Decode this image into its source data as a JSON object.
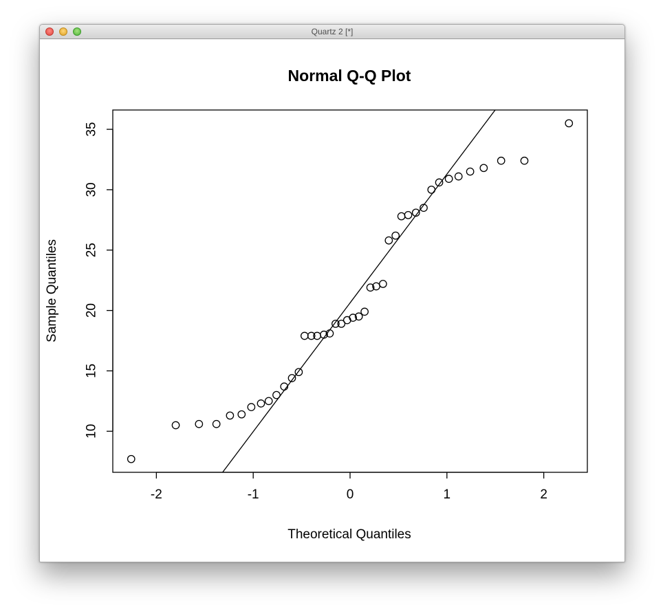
{
  "window": {
    "title": "Quartz 2 [*]"
  },
  "colors": {
    "ink": "#000000",
    "background": "#ffffff"
  },
  "chart_data": {
    "type": "scatter",
    "title": "Normal Q-Q Plot",
    "xlabel": "Theoretical Quantiles",
    "ylabel": "Sample Quantiles",
    "xlim": [
      -2.45,
      2.45
    ],
    "ylim": [
      6.6,
      36.6
    ],
    "x_ticks": [
      -2,
      -1,
      0,
      1,
      2
    ],
    "x_tick_labels": [
      "-2",
      "-1",
      "0",
      "1",
      "2"
    ],
    "y_ticks": [
      10,
      15,
      20,
      25,
      30,
      35
    ],
    "y_tick_labels": [
      "10",
      "15",
      "20",
      "25",
      "30",
      "35"
    ],
    "grid": false,
    "marker": "open-circle",
    "points": [
      {
        "x": -2.26,
        "y": 7.7
      },
      {
        "x": -1.8,
        "y": 10.5
      },
      {
        "x": -1.56,
        "y": 10.6
      },
      {
        "x": -1.38,
        "y": 10.6
      },
      {
        "x": -1.24,
        "y": 11.3
      },
      {
        "x": -1.12,
        "y": 11.4
      },
      {
        "x": -1.02,
        "y": 12.0
      },
      {
        "x": -0.92,
        "y": 12.3
      },
      {
        "x": -0.84,
        "y": 12.5
      },
      {
        "x": -0.76,
        "y": 13.0
      },
      {
        "x": -0.68,
        "y": 13.7
      },
      {
        "x": -0.6,
        "y": 14.4
      },
      {
        "x": -0.53,
        "y": 14.9
      },
      {
        "x": -0.47,
        "y": 17.9
      },
      {
        "x": -0.4,
        "y": 17.9
      },
      {
        "x": -0.34,
        "y": 17.9
      },
      {
        "x": -0.27,
        "y": 18.0
      },
      {
        "x": -0.21,
        "y": 18.1
      },
      {
        "x": -0.15,
        "y": 18.9
      },
      {
        "x": -0.09,
        "y": 18.9
      },
      {
        "x": -0.03,
        "y": 19.2
      },
      {
        "x": 0.03,
        "y": 19.4
      },
      {
        "x": 0.09,
        "y": 19.5
      },
      {
        "x": 0.15,
        "y": 19.9
      },
      {
        "x": 0.21,
        "y": 21.9
      },
      {
        "x": 0.27,
        "y": 22.0
      },
      {
        "x": 0.34,
        "y": 22.2
      },
      {
        "x": 0.4,
        "y": 25.8
      },
      {
        "x": 0.47,
        "y": 26.2
      },
      {
        "x": 0.53,
        "y": 27.8
      },
      {
        "x": 0.6,
        "y": 27.9
      },
      {
        "x": 0.68,
        "y": 28.1
      },
      {
        "x": 0.76,
        "y": 28.5
      },
      {
        "x": 0.84,
        "y": 30.0
      },
      {
        "x": 0.92,
        "y": 30.6
      },
      {
        "x": 1.02,
        "y": 30.9
      },
      {
        "x": 1.12,
        "y": 31.1
      },
      {
        "x": 1.24,
        "y": 31.5
      },
      {
        "x": 1.38,
        "y": 31.8
      },
      {
        "x": 1.56,
        "y": 32.4
      },
      {
        "x": 1.8,
        "y": 32.4
      },
      {
        "x": 2.26,
        "y": 35.5
      }
    ],
    "reference_line": {
      "intercept": 20.63,
      "slope": 10.66
    }
  }
}
